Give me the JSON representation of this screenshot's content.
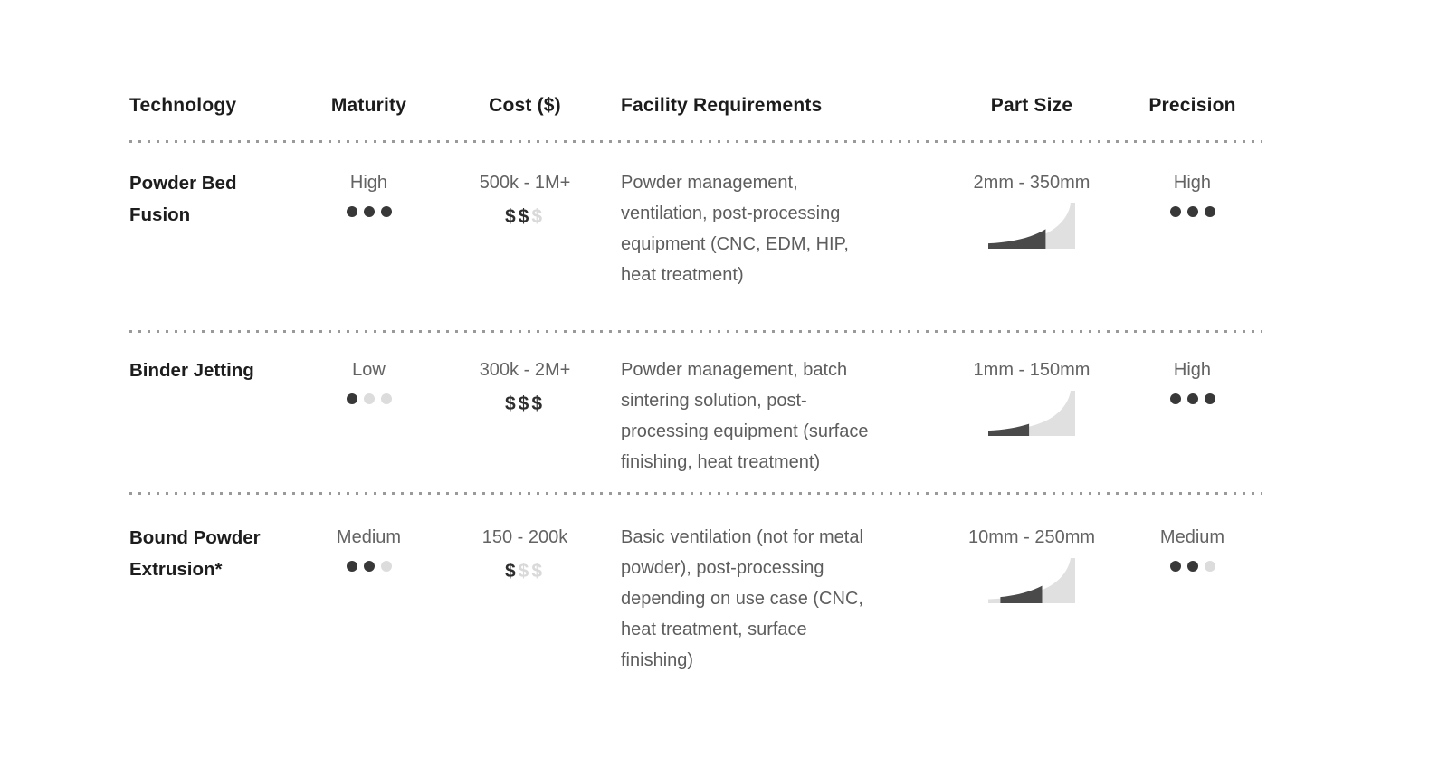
{
  "colors": {
    "text_primary": "#1d1d1d",
    "text_secondary": "#5f5f5f",
    "dot_active": "#383838",
    "dot_inactive": "#dcdcdc",
    "dollar_active": "#2e2e2e",
    "dollar_inactive": "#d9d9d9",
    "curve_light": "#e0e0e0",
    "curve_dark": "#4a4a4a",
    "separator": "#9a9a9a"
  },
  "table": {
    "columns": [
      {
        "key": "technology",
        "label": "Technology",
        "align": "left"
      },
      {
        "key": "maturity",
        "label": "Maturity",
        "align": "center"
      },
      {
        "key": "cost",
        "label": "Cost ($)",
        "align": "center"
      },
      {
        "key": "facility",
        "label": "Facility Requirements",
        "align": "left"
      },
      {
        "key": "part_size",
        "label": "Part Size",
        "align": "center"
      },
      {
        "key": "precision",
        "label": "Precision",
        "align": "center"
      }
    ],
    "rows": [
      {
        "technology_lines": [
          "Powder Bed",
          "Fusion"
        ],
        "maturity": {
          "label": "High",
          "level": 3,
          "max": 3
        },
        "cost": {
          "range": "500k - 1M+",
          "dollars": 2,
          "max": 3
        },
        "facility_lines": [
          "Powder management,",
          "ventilation, post-processing",
          "equipment (CNC, EDM, HIP,",
          "heat treatment)"
        ],
        "part_size": {
          "range": "2mm - 350mm",
          "fill_start": 0.0,
          "fill_end": 0.66
        },
        "precision": {
          "label": "High",
          "level": 3,
          "max": 3
        }
      },
      {
        "technology_lines": [
          "Binder Jetting"
        ],
        "maturity": {
          "label": "Low",
          "level": 1,
          "max": 3
        },
        "cost": {
          "range": "300k - 2M+",
          "dollars": 3,
          "max": 3
        },
        "facility_lines": [
          "Powder management, batch",
          "sintering solution, post-",
          "processing equipment (surface",
          "finishing, heat treatment)"
        ],
        "part_size": {
          "range": "1mm - 150mm",
          "fill_start": 0.0,
          "fill_end": 0.47
        },
        "precision": {
          "label": "High",
          "level": 3,
          "max": 3
        }
      },
      {
        "technology_lines": [
          "Bound Powder",
          "Extrusion*"
        ],
        "maturity": {
          "label": "Medium",
          "level": 2,
          "max": 3
        },
        "cost": {
          "range": "150 - 200k",
          "dollars": 1,
          "max": 3
        },
        "facility_lines": [
          "Basic ventilation (not for metal",
          "powder), post-processing",
          "depending on use case (CNC,",
          "heat treatment, surface",
          "finishing)"
        ],
        "part_size": {
          "range": "10mm - 250mm",
          "fill_start": 0.14,
          "fill_end": 0.62
        },
        "precision": {
          "label": "Medium",
          "level": 2,
          "max": 3
        }
      }
    ]
  }
}
